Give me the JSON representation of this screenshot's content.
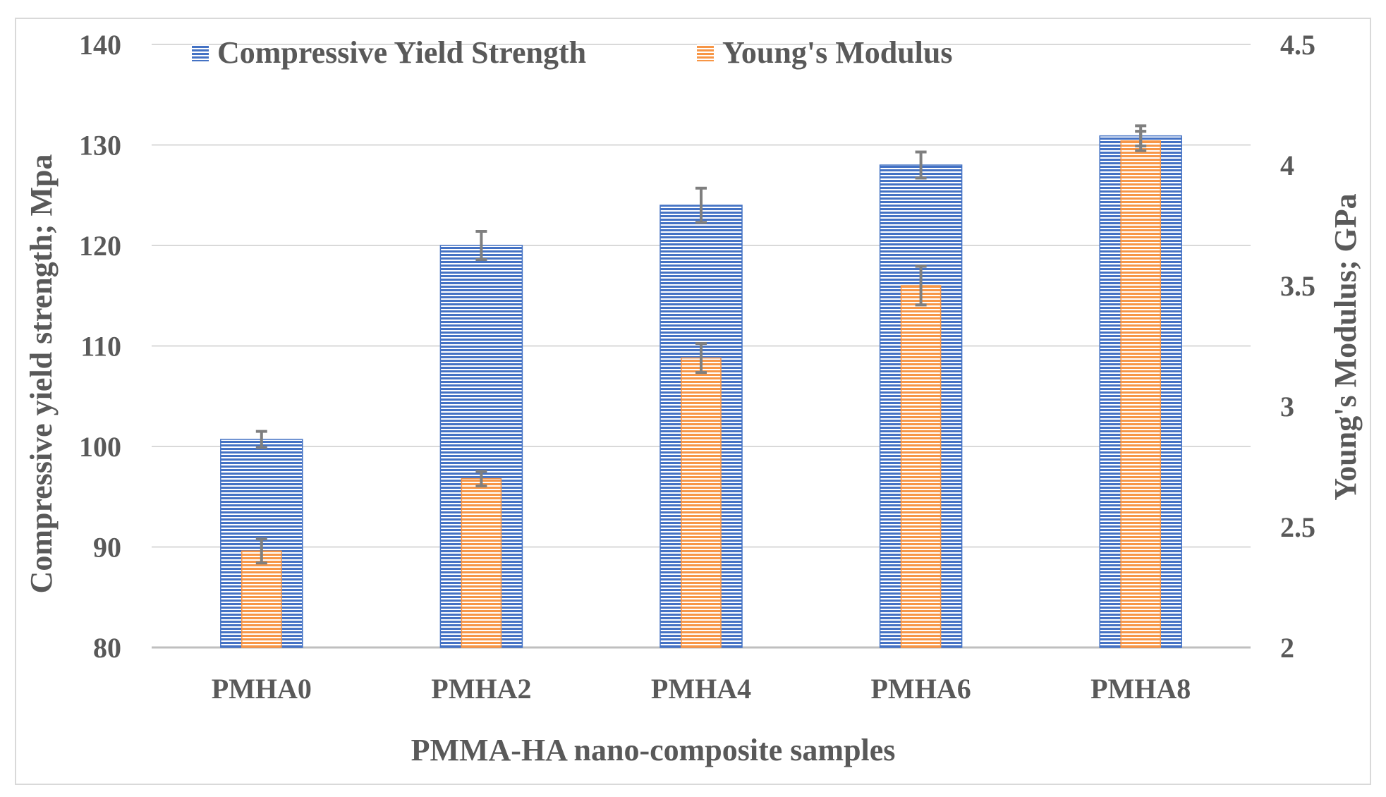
{
  "chart_data": {
    "type": "bar",
    "categories": [
      "PMHA0",
      "PMHA2",
      "PMHA4",
      "PMHA6",
      "PMHA8"
    ],
    "series": [
      {
        "name": "Compressive Yield Strength",
        "axis": "left",
        "values": [
          100.7,
          120.0,
          124.0,
          128.0,
          130.9
        ],
        "errors": [
          0.8,
          1.4,
          1.7,
          1.3,
          1.0
        ],
        "color": "#4472C4"
      },
      {
        "name": "Young's Modulus",
        "axis": "right",
        "values": [
          2.4,
          2.7,
          3.2,
          3.5,
          4.1
        ],
        "errors": [
          0.05,
          0.03,
          0.06,
          0.08,
          0.04
        ],
        "color": "#F79646"
      }
    ],
    "xlabel": "PMMA-HA nano-composite samples",
    "ylabel": "Compressive yield strength; Mpa",
    "y2label": "Young's Modulus; GPa",
    "ylim": [
      80,
      140
    ],
    "y2lim": [
      2,
      4.5
    ],
    "yticks": [
      80,
      90,
      100,
      110,
      120,
      130,
      140
    ],
    "y2ticks": [
      "2",
      "2.5",
      "3",
      "3.5",
      "4",
      "4.5"
    ],
    "grid": true,
    "legend_position": "top"
  },
  "colors": {
    "grid": "#D9D9D9",
    "axis": "#BFBFBF",
    "error_bar": "#7F7F7F",
    "border": "#D9D9D9"
  }
}
